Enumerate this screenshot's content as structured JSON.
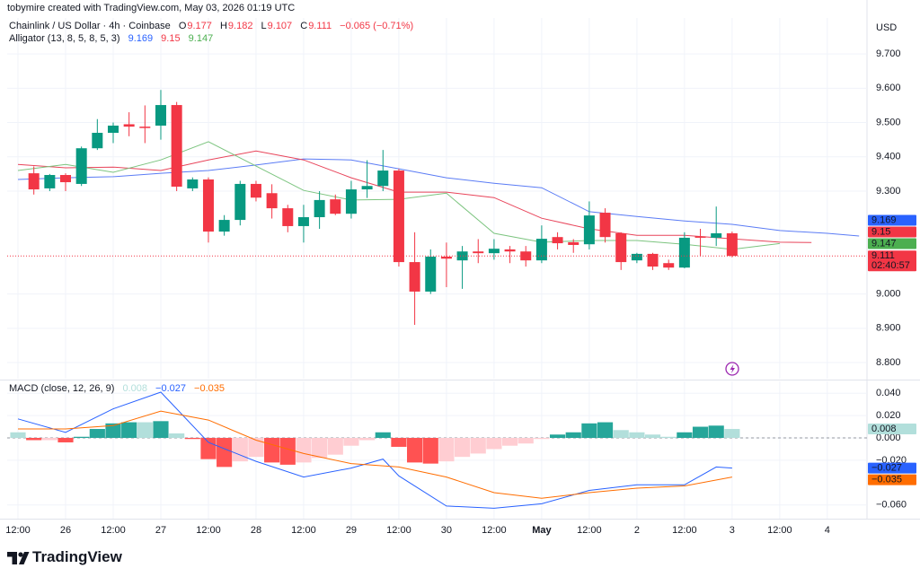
{
  "credit": "tobymire created with TradingView.com, May 03, 2026 01:19 UTC",
  "brand": "TradingView",
  "chart_data": [
    {
      "type": "candlestick",
      "title": "Chainlink / US Dollar · 4h · Coinbase",
      "currency": "USD",
      "ohlc_labels": [
        "O",
        "H",
        "L",
        "C"
      ],
      "change_label": "−0.065 (−0.71%)",
      "countdown": "02:40:57",
      "x": [
        1,
        2,
        3,
        4,
        5,
        6,
        7,
        8,
        9,
        10,
        11,
        12,
        13,
        14,
        15,
        16,
        17,
        18,
        19,
        20,
        21,
        22,
        23,
        24,
        25,
        26,
        27,
        28,
        29,
        30,
        31,
        32,
        33,
        34,
        35,
        36,
        37,
        38,
        39,
        40,
        41,
        42,
        43,
        44,
        45
      ],
      "open": [
        9.352,
        9.308,
        9.347,
        9.321,
        9.425,
        9.47,
        9.495,
        9.488,
        9.491,
        9.551,
        9.308,
        9.334,
        9.182,
        9.216,
        9.321,
        9.294,
        9.25,
        9.198,
        9.224,
        9.276,
        9.234,
        9.305,
        9.315,
        9.36,
        9.093,
        9.007,
        9.109,
        9.098,
        9.124,
        9.119,
        9.13,
        9.124,
        9.098,
        9.166,
        9.151,
        9.145,
        9.237,
        9.177,
        9.098,
        9.117,
        9.09,
        9.077,
        9.168,
        9.164,
        9.177
      ],
      "high": [
        9.372,
        9.35,
        9.352,
        9.43,
        9.51,
        9.5,
        9.53,
        9.55,
        9.595,
        9.56,
        9.34,
        9.34,
        9.23,
        9.33,
        9.33,
        9.32,
        9.26,
        9.26,
        9.3,
        9.29,
        9.33,
        9.39,
        9.42,
        9.365,
        9.18,
        9.13,
        9.15,
        9.14,
        9.16,
        9.16,
        9.14,
        9.14,
        9.2,
        9.18,
        9.16,
        9.27,
        9.25,
        9.18,
        9.12,
        9.12,
        9.1,
        9.18,
        9.19,
        9.255,
        9.182
      ],
      "low": [
        9.29,
        9.3,
        9.3,
        9.315,
        9.42,
        9.44,
        9.46,
        9.44,
        9.45,
        9.3,
        9.3,
        9.15,
        9.17,
        9.2,
        9.27,
        9.22,
        9.18,
        9.15,
        9.19,
        9.23,
        9.22,
        9.28,
        9.3,
        9.08,
        8.91,
        9.0,
        9.02,
        9.015,
        9.09,
        9.1,
        9.09,
        9.08,
        9.09,
        9.13,
        9.12,
        9.13,
        9.15,
        9.07,
        9.09,
        9.07,
        9.07,
        9.075,
        9.11,
        9.14,
        9.107
      ],
      "close": [
        9.305,
        9.347,
        9.326,
        9.425,
        9.47,
        9.491,
        9.488,
        9.484,
        9.551,
        9.313,
        9.334,
        9.182,
        9.216,
        9.321,
        9.281,
        9.25,
        9.198,
        9.224,
        9.274,
        9.234,
        9.305,
        9.315,
        9.36,
        9.093,
        9.007,
        9.109,
        9.103,
        9.124,
        9.119,
        9.132,
        9.124,
        9.098,
        9.161,
        9.148,
        9.143,
        9.229,
        9.166,
        9.093,
        9.117,
        9.08,
        9.077,
        9.164,
        9.164,
        9.177,
        9.111
      ],
      "up_color": "#089981",
      "down_color": "#f23645",
      "ylim": [
        8.753,
        9.805
      ],
      "yticks": [
        {
          "value": 8.8,
          "label": "8.800"
        },
        {
          "value": 8.9,
          "label": "8.900"
        },
        {
          "value": 9.0,
          "label": "9.000"
        },
        {
          "value": 9.3,
          "label": "9.300"
        },
        {
          "value": 9.4,
          "label": "9.400"
        },
        {
          "value": 9.5,
          "label": "9.500"
        },
        {
          "value": 9.6,
          "label": "9.600"
        },
        {
          "value": 9.7,
          "label": "9.700"
        }
      ],
      "last_price_line": true,
      "grid": true,
      "indicator": {
        "title": "Alligator (13, 8, 5, 8, 5, 3)",
        "series": [
          {
            "color": "#5b7cf5",
            "tag_color": "#2962ff",
            "x": [
              0,
              3,
              6,
              9,
              12,
              15,
              18,
              21,
              24,
              27,
              30,
              33,
              36,
              39,
              42,
              45,
              48,
              51,
              53
            ],
            "values": [
              9.334,
              9.339,
              9.342,
              9.352,
              9.36,
              9.376,
              9.394,
              9.391,
              9.365,
              9.339,
              9.323,
              9.31,
              9.24,
              9.226,
              9.213,
              9.203,
              9.185,
              9.177,
              9.169
            ]
          },
          {
            "color": "#e8445a",
            "tag_color": "#f23645",
            "x": [
              0,
              3,
              6,
              9,
              12,
              15,
              18,
              21,
              24,
              27,
              30,
              33,
              36,
              39,
              42,
              45,
              48,
              50
            ],
            "values": [
              9.378,
              9.368,
              9.37,
              9.36,
              9.391,
              9.417,
              9.391,
              9.339,
              9.297,
              9.297,
              9.281,
              9.221,
              9.19,
              9.171,
              9.171,
              9.161,
              9.151,
              9.15
            ]
          },
          {
            "color": "#7cc47f",
            "tag_color": "#4caf50",
            "x": [
              0,
              3,
              6,
              9,
              12,
              15,
              18,
              21,
              24,
              27,
              30,
              33,
              36,
              39,
              42,
              45,
              48
            ],
            "values": [
              9.36,
              9.378,
              9.355,
              9.391,
              9.444,
              9.373,
              9.302,
              9.274,
              9.276,
              9.294,
              9.177,
              9.151,
              9.156,
              9.156,
              9.145,
              9.13,
              9.147
            ]
          }
        ]
      }
    },
    {
      "type": "macd",
      "title": "MACD (close, 12, 26, 9)",
      "xlim": [
        -0.68,
        53.5
      ],
      "xticks": [
        {
          "value": 0,
          "label": "12:00"
        },
        {
          "value": 3,
          "label": "26"
        },
        {
          "value": 6,
          "label": "12:00"
        },
        {
          "value": 9,
          "label": "27"
        },
        {
          "value": 12,
          "label": "12:00"
        },
        {
          "value": 15,
          "label": "28"
        },
        {
          "value": 18,
          "label": "12:00"
        },
        {
          "value": 21,
          "label": "29"
        },
        {
          "value": 24,
          "label": "12:00"
        },
        {
          "value": 27,
          "label": "30"
        },
        {
          "value": 30,
          "label": "12:00"
        },
        {
          "value": 33,
          "label": "May"
        },
        {
          "value": 36,
          "label": "12:00"
        },
        {
          "value": 39,
          "label": "2"
        },
        {
          "value": 42,
          "label": "12:00"
        },
        {
          "value": 45,
          "label": "3"
        },
        {
          "value": 48,
          "label": "12:00"
        },
        {
          "value": 51,
          "label": "4"
        }
      ],
      "ylim": [
        -0.0723,
        0.0506
      ],
      "yticks": [
        {
          "value": -0.06,
          "label": "−0.060"
        },
        {
          "value": -0.02,
          "label": "−0.020"
        },
        {
          "value": 0,
          "label": "0.000"
        },
        {
          "value": 0.02,
          "label": "0.020"
        },
        {
          "value": 0.04,
          "label": "0.040"
        }
      ],
      "zero_line": true,
      "histogram": {
        "x": [
          0,
          1,
          2,
          3,
          4,
          5,
          6,
          7,
          8,
          9,
          10,
          11,
          12,
          13,
          14,
          15,
          16,
          17,
          18,
          19,
          20,
          21,
          22,
          23,
          24,
          25,
          26,
          27,
          28,
          29,
          30,
          31,
          32,
          33,
          34,
          35,
          36,
          37,
          38,
          39,
          40,
          41,
          42,
          43,
          44,
          45
        ],
        "values": [
          0.005,
          -0.002,
          -0.002,
          -0.004,
          0.001,
          0.008,
          0.013,
          0.014,
          0.014,
          0.015,
          0.004,
          -0.001,
          -0.019,
          -0.026,
          -0.021,
          -0.017,
          -0.022,
          -0.024,
          -0.022,
          -0.018,
          -0.015,
          -0.007,
          -0.002,
          0.005,
          -0.008,
          -0.022,
          -0.023,
          -0.021,
          -0.017,
          -0.014,
          -0.01,
          -0.007,
          -0.005,
          -0.001,
          0.003,
          0.005,
          0.013,
          0.014,
          0.007,
          0.005,
          0.003,
          0.001,
          0.005,
          0.01,
          0.011,
          0.008
        ],
        "colors": {
          "grow_up": "#26a69a",
          "fall_up": "#b2dfdb",
          "grow_down": "#ff5252",
          "fall_down": "#ffcdd2"
        }
      },
      "series": [
        {
          "color": "#2962ff",
          "x": [
            0,
            3,
            6,
            9,
            12,
            15,
            18,
            21,
            23,
            24,
            27,
            30,
            33,
            36,
            39,
            42,
            44,
            45
          ],
          "values": [
            0.017,
            0.005,
            0.026,
            0.041,
            -0.004,
            -0.021,
            -0.035,
            -0.027,
            -0.019,
            -0.034,
            -0.061,
            -0.063,
            -0.059,
            -0.047,
            -0.042,
            -0.042,
            -0.026,
            -0.027
          ],
          "last_label": "−0.027"
        },
        {
          "color": "#ff6d00",
          "x": [
            0,
            3,
            6,
            9,
            12,
            15,
            18,
            21,
            24,
            27,
            30,
            33,
            36,
            39,
            42,
            45
          ],
          "values": [
            0.008,
            0.008,
            0.011,
            0.024,
            0.016,
            -0.002,
            -0.014,
            -0.023,
            -0.026,
            -0.035,
            -0.049,
            -0.054,
            -0.049,
            -0.045,
            -0.043,
            -0.035
          ],
          "last_label": "−0.035"
        }
      ]
    }
  ]
}
